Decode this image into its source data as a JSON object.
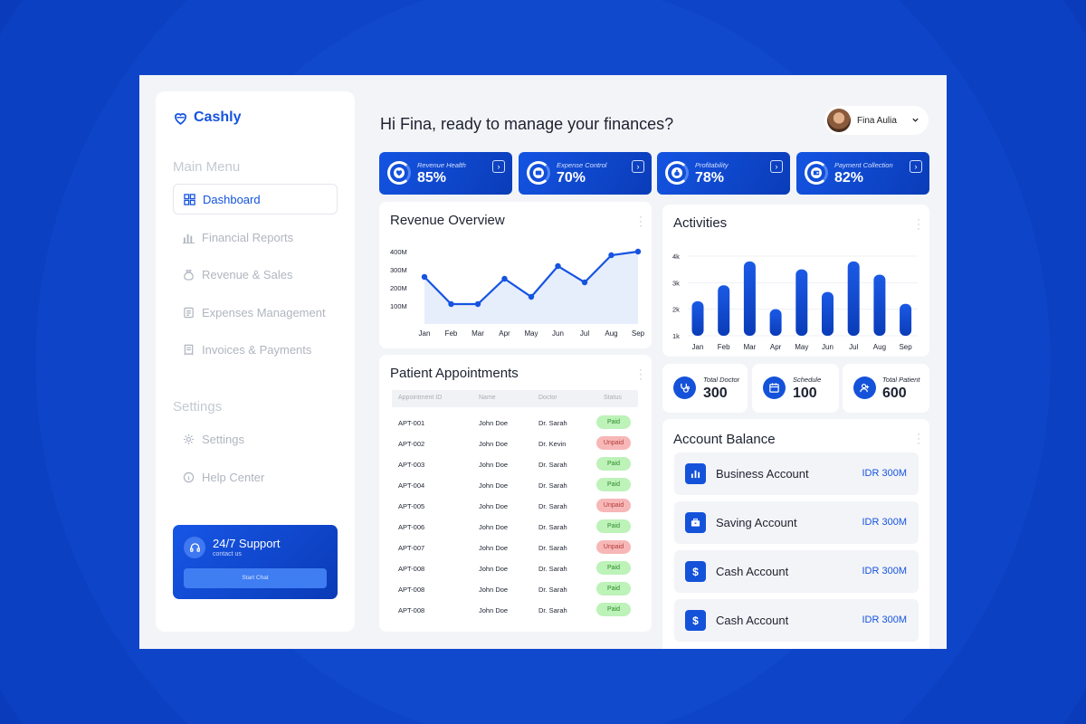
{
  "app": {
    "name": "Cashly"
  },
  "sidebar": {
    "main_menu_label": "Main Menu",
    "items": [
      {
        "label": "Dashboard",
        "icon": "grid-icon",
        "active": true
      },
      {
        "label": "Financial Reports",
        "icon": "bar-chart-icon"
      },
      {
        "label": "Revenue & Sales",
        "icon": "money-bag-icon"
      },
      {
        "label": "Expenses Management",
        "icon": "document-icon"
      },
      {
        "label": "Invoices & Payments",
        "icon": "invoice-icon"
      }
    ],
    "settings_label": "Settings",
    "settings_items": [
      {
        "label": "Settings",
        "icon": "gear-icon"
      },
      {
        "label": "Help Center",
        "icon": "info-icon"
      }
    ],
    "support": {
      "title": "24/7 Support",
      "subtitle": "contact us",
      "button": "Start Chat"
    }
  },
  "header": {
    "greeting": "Hi Fina, ready to manage your finances?",
    "user_name": "Fina Aulia"
  },
  "kpis": [
    {
      "label": "Revenue Health",
      "value": "85%",
      "icon": "heart-icon"
    },
    {
      "label": "Expense Control",
      "value": "70%",
      "icon": "wallet-icon"
    },
    {
      "label": "Profitability",
      "value": "78%",
      "icon": "money-bag-icon"
    },
    {
      "label": "Payment Collection",
      "value": "82%",
      "icon": "card-icon"
    }
  ],
  "revenue_overview": {
    "title": "Revenue Overview",
    "chart_data": {
      "type": "area",
      "categories": [
        "Jan",
        "Feb",
        "Mar",
        "Apr",
        "May",
        "Jun",
        "Jul",
        "Aug",
        "Sep"
      ],
      "y_ticks": [
        "400M",
        "300M",
        "200M",
        "100M"
      ],
      "ylim": [
        0,
        400
      ],
      "values": [
        260,
        110,
        110,
        250,
        150,
        320,
        230,
        380,
        400
      ]
    }
  },
  "activities": {
    "title": "Activities",
    "chart_data": {
      "type": "bar",
      "categories": [
        "Jan",
        "Feb",
        "Mar",
        "Apr",
        "May",
        "Jun",
        "Jul",
        "Aug",
        "Sep"
      ],
      "y_ticks": [
        "4k",
        "3k",
        "2k",
        "1k"
      ],
      "ylim": [
        1000,
        4000
      ],
      "values": [
        2300,
        2900,
        3800,
        2000,
        3500,
        2650,
        3800,
        3300,
        2200
      ]
    }
  },
  "appointments": {
    "title": "Patient Appointments",
    "columns": [
      "Appointment ID",
      "Name",
      "Doctor",
      "Status"
    ],
    "rows": [
      {
        "id": "APT-001",
        "name": "John Doe",
        "doctor": "Dr. Sarah",
        "status": "Paid"
      },
      {
        "id": "APT-002",
        "name": "John Doe",
        "doctor": "Dr. Kevin",
        "status": "Unpaid"
      },
      {
        "id": "APT-003",
        "name": "John Doe",
        "doctor": "Dr. Sarah",
        "status": "Paid"
      },
      {
        "id": "APT-004",
        "name": "John Doe",
        "doctor": "Dr. Sarah",
        "status": "Paid"
      },
      {
        "id": "APT-005",
        "name": "John Doe",
        "doctor": "Dr. Sarah",
        "status": "Unpaid"
      },
      {
        "id": "APT-006",
        "name": "John Doe",
        "doctor": "Dr. Sarah",
        "status": "Paid"
      },
      {
        "id": "APT-007",
        "name": "John Doe",
        "doctor": "Dr. Sarah",
        "status": "Unpaid"
      },
      {
        "id": "APT-008",
        "name": "John Doe",
        "doctor": "Dr. Sarah",
        "status": "Paid"
      },
      {
        "id": "APT-008",
        "name": "John Doe",
        "doctor": "Dr. Sarah",
        "status": "Paid"
      },
      {
        "id": "APT-008",
        "name": "John Doe",
        "doctor": "Dr. Sarah",
        "status": "Paid"
      }
    ]
  },
  "stats": [
    {
      "label": "Total Doctor",
      "value": "300",
      "icon": "stethoscope-icon"
    },
    {
      "label": "Schedule",
      "value": "100",
      "icon": "calendar-icon"
    },
    {
      "label": "Total Patient",
      "value": "600",
      "icon": "users-icon"
    }
  ],
  "account_balance": {
    "title": "Account Balance",
    "accounts": [
      {
        "name": "Business Account",
        "amount": "IDR 300M",
        "icon": "bar-chart-icon"
      },
      {
        "name": "Saving Account",
        "amount": "IDR 300M",
        "icon": "briefcase-icon"
      },
      {
        "name": "Cash Account",
        "amount": "IDR 300M",
        "icon": "dollar-icon"
      },
      {
        "name": "Cash Account",
        "amount": "IDR 300M",
        "icon": "dollar-icon"
      }
    ]
  },
  "colors": {
    "primary": "#1553e0",
    "dark_primary": "#0a3cb8",
    "paid": "#bdf2b9",
    "unpaid": "#f7b7b7"
  }
}
